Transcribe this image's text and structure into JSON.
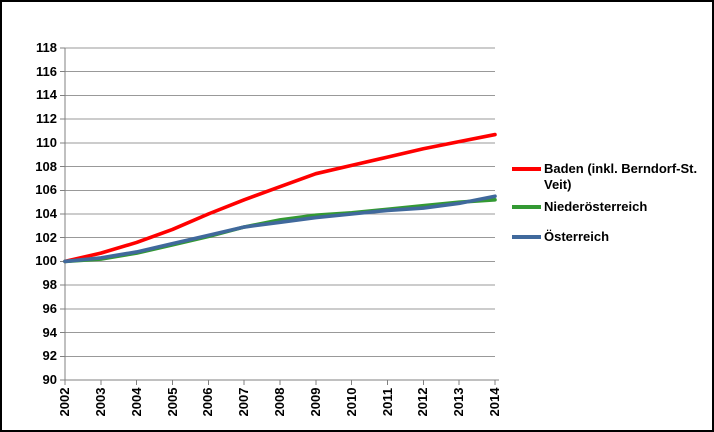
{
  "chart_data": {
    "type": "line",
    "title": "",
    "xlabel": "",
    "ylabel": "",
    "x": [
      "2002",
      "2003",
      "2004",
      "2005",
      "2006",
      "2007",
      "2008",
      "2009",
      "2010",
      "2011",
      "2012",
      "2013",
      "2014"
    ],
    "series": [
      {
        "name": "Baden (inkl. Berndorf-St. Veit)",
        "color": "#ff0000",
        "values": [
          100.0,
          100.7,
          101.6,
          102.7,
          104.0,
          105.2,
          106.3,
          107.4,
          108.1,
          108.8,
          109.5,
          110.1,
          110.7
        ]
      },
      {
        "name": "Niederösterreich",
        "color": "#339933",
        "values": [
          100.0,
          100.2,
          100.7,
          101.4,
          102.1,
          102.9,
          103.5,
          103.9,
          104.1,
          104.4,
          104.7,
          105.0,
          105.2
        ]
      },
      {
        "name": "Österreich",
        "color": "#40699c",
        "values": [
          100.0,
          100.3,
          100.8,
          101.5,
          102.2,
          102.9,
          103.3,
          103.7,
          104.0,
          104.3,
          104.5,
          104.9,
          105.5
        ]
      }
    ],
    "ylim": [
      90,
      118
    ],
    "yticks": [
      118,
      116,
      114,
      112,
      110,
      108,
      106,
      104,
      102,
      100,
      98,
      96,
      94,
      92,
      90
    ],
    "x_tick_rotation": -90,
    "grid": true,
    "gridline_color": "#999999",
    "axis_color": "#808080",
    "tick_label_color": "#000000",
    "legend_position": "right",
    "background_color": "#ffffff",
    "border_color": "#000000"
  }
}
